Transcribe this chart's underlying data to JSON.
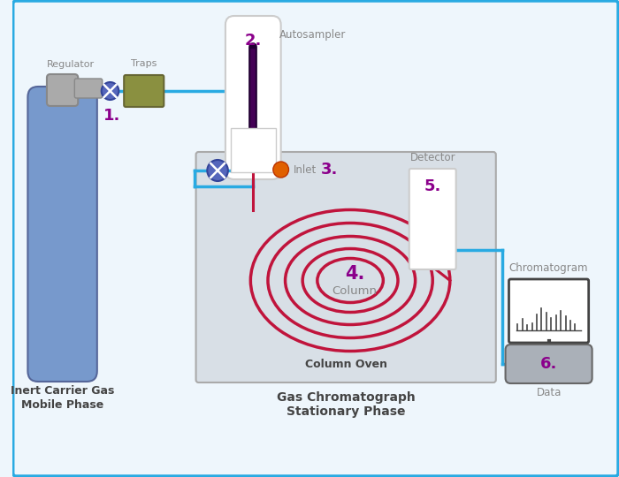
{
  "bg_color": "#eef6fc",
  "border_color": "#29aae2",
  "purple": "#8B008B",
  "sky_blue": "#29aae2",
  "red_tube": "#c0143c",
  "gray_text": "#888888",
  "dark_gray": "#444444",
  "olive": "#8a9040",
  "light_gray_oven": "#d8dfe6",
  "medium_gray": "#aab0b8",
  "valve_fill": "#5566bb",
  "valve_edge": "#334499",
  "cyl_fill": "#7799cc",
  "cyl_edge": "#556699",
  "cap_fill": "#aaaaaa",
  "white": "#ffffff",
  "labels": [
    "1.",
    "2.",
    "3.",
    "4.",
    "5.",
    "6."
  ],
  "text_regulator": "Regulator",
  "text_traps": "Traps",
  "text_autosampler": "Autosampler",
  "text_inlet": "Inlet",
  "text_column": "Column",
  "text_column_oven": "Column Oven",
  "text_detector": "Detector",
  "text_chromatogram": "Chromatogram",
  "text_data": "Data",
  "text_gc1": "Gas Chromatograph",
  "text_gc2": "Stationary Phase",
  "text_gas1": "Inert Carrier Gas",
  "text_gas2": "Mobile Phase",
  "coil_radii_x": [
    115,
    95,
    75,
    55,
    38
  ],
  "coil_radii_y": [
    80,
    65,
    50,
    36,
    25
  ]
}
